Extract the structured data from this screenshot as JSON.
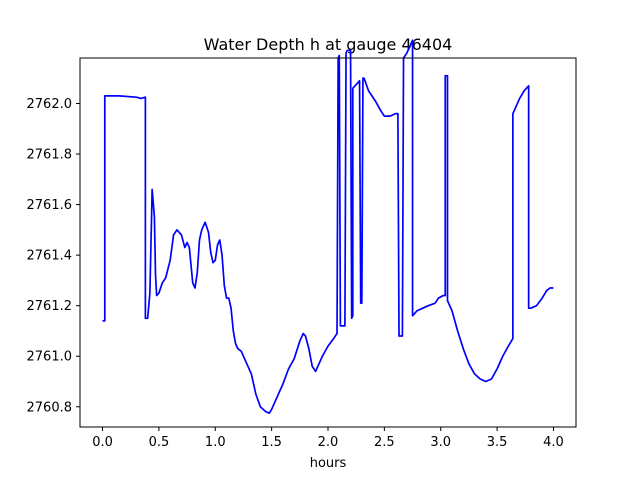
{
  "chart_data": {
    "type": "line",
    "title": "Water Depth h at gauge 46404",
    "xlabel": "hours",
    "ylabel": "",
    "xlim": [
      -0.2,
      4.2
    ],
    "ylim": [
      2760.72,
      2762.18
    ],
    "xticks": [
      0.0,
      0.5,
      1.0,
      1.5,
      2.0,
      2.5,
      3.0,
      3.5,
      4.0
    ],
    "xtick_labels": [
      "0.0",
      "0.5",
      "1.0",
      "1.5",
      "2.0",
      "2.5",
      "3.0",
      "3.5",
      "4.0"
    ],
    "yticks": [
      2760.8,
      2761.0,
      2761.2,
      2761.4,
      2761.6,
      2761.8,
      2762.0
    ],
    "ytick_labels": [
      "2760.8",
      "2761.0",
      "2761.2",
      "2761.4",
      "2761.6",
      "2761.8",
      "2762.0"
    ],
    "grid": false,
    "line_color": "#0000ff",
    "series": [
      {
        "name": "",
        "x": [
          0.0,
          0.02,
          0.02,
          0.15,
          0.3,
          0.34,
          0.38,
          0.38,
          0.4,
          0.42,
          0.44,
          0.46,
          0.47,
          0.48,
          0.5,
          0.53,
          0.56,
          0.6,
          0.63,
          0.66,
          0.7,
          0.73,
          0.75,
          0.77,
          0.8,
          0.82,
          0.84,
          0.86,
          0.88,
          0.91,
          0.94,
          0.96,
          0.98,
          1.0,
          1.02,
          1.04,
          1.06,
          1.08,
          1.1,
          1.12,
          1.14,
          1.16,
          1.18,
          1.2,
          1.23,
          1.27,
          1.32,
          1.36,
          1.4,
          1.45,
          1.48,
          1.5,
          1.55,
          1.6,
          1.65,
          1.7,
          1.75,
          1.78,
          1.8,
          1.83,
          1.86,
          1.89,
          1.92,
          1.95,
          2.0,
          2.05,
          2.08,
          2.09,
          2.1,
          2.11,
          2.12,
          2.15,
          2.16,
          2.17,
          2.2,
          2.21,
          2.22,
          2.22,
          2.26,
          2.28,
          2.29,
          2.3,
          2.31,
          2.32,
          2.36,
          2.42,
          2.47,
          2.5,
          2.55,
          2.6,
          2.62,
          2.63,
          2.66,
          2.67,
          2.7,
          2.72,
          2.75,
          2.75,
          2.79,
          2.84,
          2.89,
          2.95,
          2.98,
          3.02,
          3.04,
          3.04,
          3.06,
          3.06,
          3.1,
          3.15,
          3.2,
          3.25,
          3.3,
          3.35,
          3.4,
          3.45,
          3.5,
          3.55,
          3.6,
          3.64,
          3.64,
          3.66,
          3.7,
          3.74,
          3.78,
          3.78,
          3.8,
          3.85,
          3.9,
          3.94,
          3.97,
          4.0
        ],
        "y": [
          2761.14,
          2761.14,
          2762.03,
          2762.03,
          2762.025,
          2762.02,
          2762.025,
          2761.15,
          2761.15,
          2761.25,
          2761.66,
          2761.55,
          2761.32,
          2761.24,
          2761.25,
          2761.29,
          2761.31,
          2761.38,
          2761.48,
          2761.5,
          2761.48,
          2761.43,
          2761.45,
          2761.43,
          2761.29,
          2761.27,
          2761.33,
          2761.46,
          2761.5,
          2761.53,
          2761.49,
          2761.41,
          2761.37,
          2761.38,
          2761.44,
          2761.46,
          2761.4,
          2761.28,
          2761.23,
          2761.23,
          2761.19,
          2761.1,
          2761.05,
          2761.03,
          2761.02,
          2760.98,
          2760.93,
          2760.85,
          2760.8,
          2760.78,
          2760.775,
          2760.79,
          2760.84,
          2760.89,
          2760.95,
          2760.99,
          2761.06,
          2761.09,
          2761.08,
          2761.03,
          2760.96,
          2760.94,
          2760.97,
          2761.0,
          2761.04,
          2761.07,
          2761.09,
          2762.18,
          2762.19,
          2761.12,
          2761.12,
          2761.12,
          2762.2,
          2762.21,
          2762.21,
          2761.15,
          2761.16,
          2762.06,
          2762.08,
          2762.09,
          2761.21,
          2761.21,
          2762.1,
          2762.1,
          2762.05,
          2762.01,
          2761.97,
          2761.95,
          2761.95,
          2761.96,
          2761.96,
          2761.08,
          2761.08,
          2762.18,
          2762.2,
          2762.22,
          2762.25,
          2761.16,
          2761.18,
          2761.19,
          2761.2,
          2761.21,
          2761.23,
          2761.24,
          2761.24,
          2762.11,
          2762.11,
          2761.22,
          2761.18,
          2761.1,
          2761.03,
          2760.97,
          2760.93,
          2760.91,
          2760.9,
          2760.91,
          2760.95,
          2761.0,
          2761.04,
          2761.07,
          2761.96,
          2761.98,
          2762.02,
          2762.05,
          2762.07,
          2761.19,
          2761.19,
          2761.2,
          2761.23,
          2761.26,
          2761.27,
          2761.27
        ]
      }
    ]
  }
}
